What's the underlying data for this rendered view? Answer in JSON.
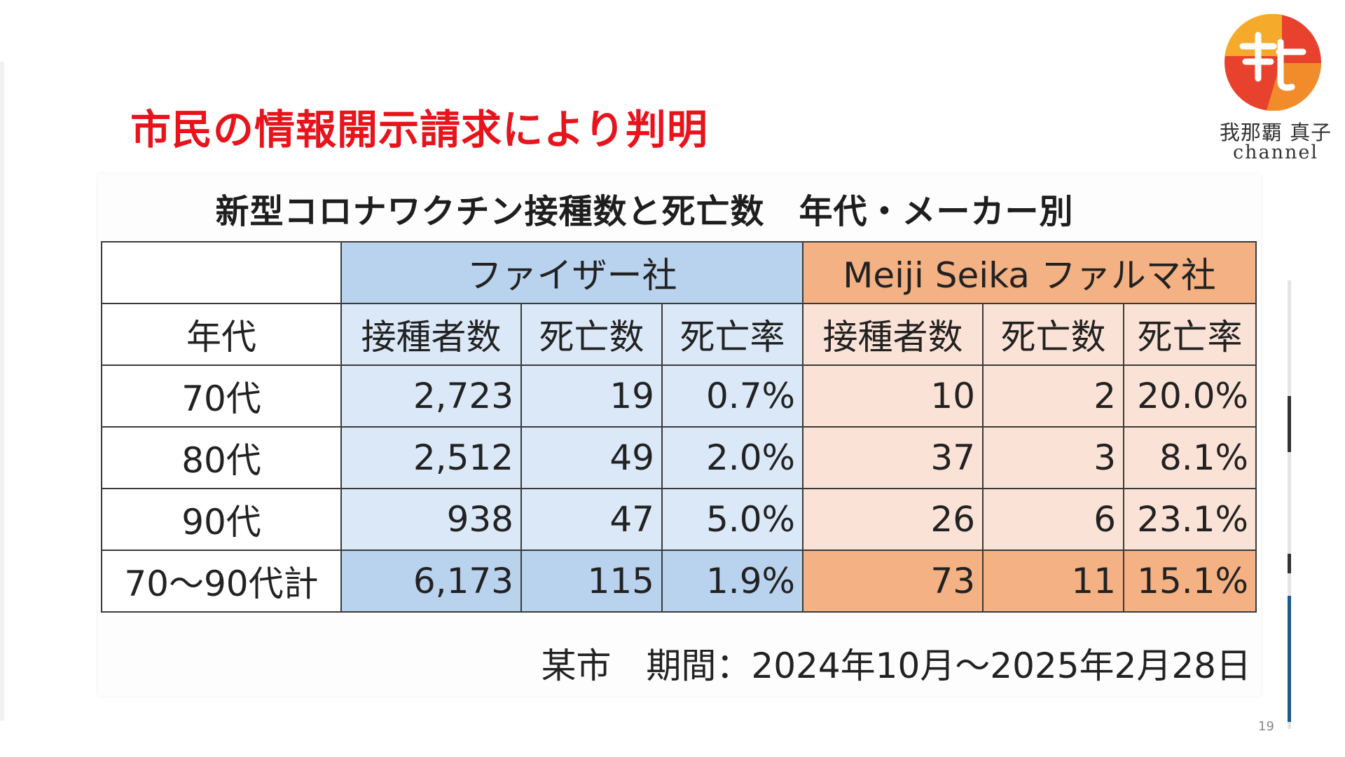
{
  "headline": "市民の情報開示請求により判明",
  "logo": {
    "name": "我那覇 真子",
    "sub": "channel"
  },
  "table": {
    "title": "新型コロナワクチン接種数と死亡数　年代・メーカー別",
    "makers": [
      "ファイザー社",
      "Meiji Seika ファルマ社"
    ],
    "age_header": "年代",
    "subheaders": [
      "接種者数",
      "死亡数",
      "死亡率",
      "接種者数",
      "死亡数",
      "死亡率"
    ],
    "rows": [
      {
        "age": "70代",
        "pf_vacc": "2,723",
        "pf_death": "19",
        "pf_rate": "0.7%",
        "mj_vacc": "10",
        "mj_death": "2",
        "mj_rate": "20.0%"
      },
      {
        "age": "80代",
        "pf_vacc": "2,512",
        "pf_death": "49",
        "pf_rate": "2.0%",
        "mj_vacc": "37",
        "mj_death": "3",
        "mj_rate": "8.1%"
      },
      {
        "age": "90代",
        "pf_vacc": "938",
        "pf_death": "47",
        "pf_rate": "5.0%",
        "mj_vacc": "26",
        "mj_death": "6",
        "mj_rate": "23.1%"
      },
      {
        "age": "70～90代計",
        "pf_vacc": "6,173",
        "pf_death": "115",
        "pf_rate": "1.9%",
        "mj_vacc": "73",
        "mj_death": "11",
        "mj_rate": "15.1%"
      }
    ],
    "footnote": "某市　期間：2024年10月～2025年2月28日"
  },
  "page_number": "19",
  "colors": {
    "headline_red": "#e8141c",
    "pfizer_header": "#b9d2ee",
    "pfizer_cell": "#dbe8f7",
    "meiji_header": "#f4b183",
    "meiji_cell": "#fbe2d6",
    "logo_red": "#e8412e",
    "logo_gold": "#f7b62c"
  }
}
